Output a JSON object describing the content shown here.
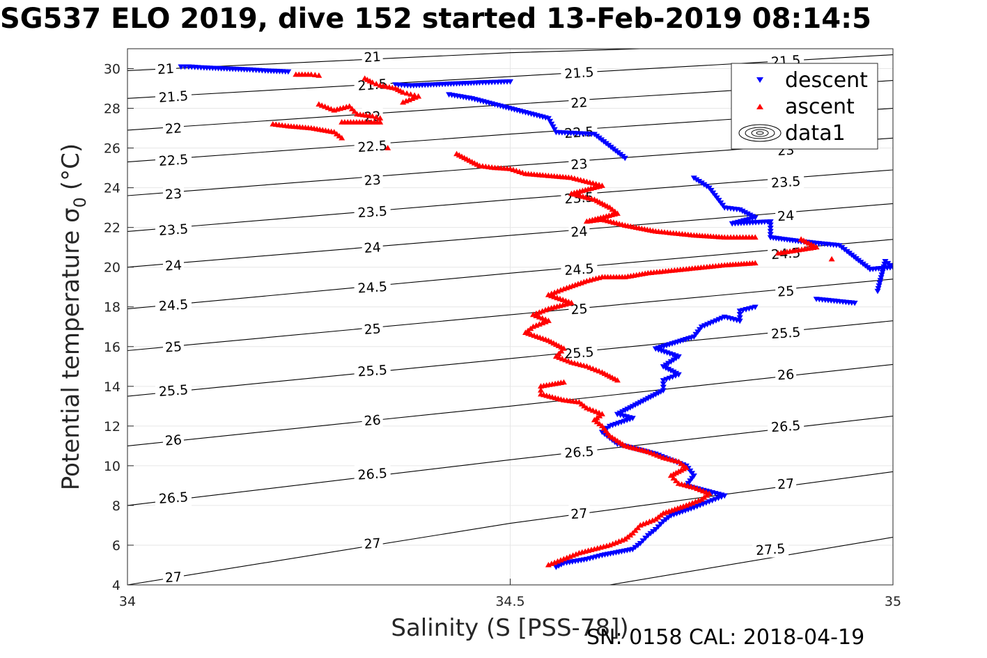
{
  "chart_data": {
    "type": "scatter",
    "title": "SG537 ELO 2019, dive 152 started 13-Feb-2019 08:14:5",
    "xlabel": "Salinity (S [PSS-78])",
    "ylabel": "Potential temperature σ",
    "ylabel_subscript": "0",
    "ylabel_unit": "(°C)",
    "xlim": [
      34,
      35
    ],
    "ylim": [
      4,
      31
    ],
    "xticks": [
      "34",
      "34.5",
      "35"
    ],
    "yticks": [
      "4",
      "6",
      "8",
      "10",
      "12",
      "14",
      "16",
      "18",
      "20",
      "22",
      "24",
      "26",
      "28",
      "30"
    ],
    "grid": true,
    "legend_position": "top-right",
    "series": [
      {
        "name": "descent",
        "marker": "triangle-down",
        "color": "#0000ff",
        "points": [
          [
            34.07,
            30.1
          ],
          [
            34.08,
            30.1
          ],
          [
            34.1,
            30.05
          ],
          [
            34.13,
            30.0
          ],
          [
            34.16,
            29.95
          ],
          [
            34.18,
            29.9
          ],
          [
            34.21,
            29.85
          ],
          [
            34.35,
            29.2
          ],
          [
            34.37,
            29.15
          ],
          [
            34.4,
            29.2
          ],
          [
            34.43,
            29.25
          ],
          [
            34.46,
            29.3
          ],
          [
            34.5,
            29.35
          ],
          [
            34.42,
            28.7
          ],
          [
            34.45,
            28.5
          ],
          [
            34.48,
            28.2
          ],
          [
            34.52,
            27.8
          ],
          [
            34.55,
            27.5
          ],
          [
            34.56,
            26.8
          ],
          [
            34.61,
            26.7
          ],
          [
            34.65,
            25.5
          ],
          [
            34.74,
            24.5
          ],
          [
            34.76,
            24.0
          ],
          [
            34.77,
            23.5
          ],
          [
            34.78,
            23.0
          ],
          [
            34.8,
            22.9
          ],
          [
            34.82,
            22.5
          ],
          [
            34.79,
            22.2
          ],
          [
            34.84,
            22.3
          ],
          [
            34.84,
            21.5
          ],
          [
            34.88,
            21.3
          ],
          [
            34.93,
            21.1
          ],
          [
            34.94,
            20.8
          ],
          [
            34.97,
            19.9
          ],
          [
            35.0,
            20.0
          ],
          [
            34.99,
            20.3
          ],
          [
            34.98,
            18.8
          ],
          [
            34.9,
            18.4
          ],
          [
            34.95,
            18.2
          ],
          [
            34.82,
            18.0
          ],
          [
            34.8,
            17.8
          ],
          [
            34.8,
            17.3
          ],
          [
            34.78,
            17.5
          ],
          [
            34.75,
            17.0
          ],
          [
            34.74,
            16.5
          ],
          [
            34.69,
            15.9
          ],
          [
            34.72,
            15.5
          ],
          [
            34.7,
            15.0
          ],
          [
            34.72,
            14.6
          ],
          [
            34.7,
            14.3
          ],
          [
            34.7,
            13.8
          ],
          [
            34.67,
            13.2
          ],
          [
            34.64,
            12.6
          ],
          [
            34.66,
            12.4
          ],
          [
            34.63,
            12.0
          ],
          [
            34.62,
            11.7
          ],
          [
            34.63,
            11.4
          ],
          [
            34.64,
            11.1
          ],
          [
            34.66,
            10.9
          ],
          [
            34.69,
            10.6
          ],
          [
            34.71,
            10.3
          ],
          [
            34.73,
            10.0
          ],
          [
            34.74,
            9.5
          ],
          [
            34.73,
            9.0
          ],
          [
            34.76,
            8.7
          ],
          [
            34.78,
            8.5
          ],
          [
            34.76,
            8.2
          ],
          [
            34.74,
            7.9
          ],
          [
            34.71,
            7.5
          ],
          [
            34.7,
            7.2
          ],
          [
            34.69,
            6.8
          ],
          [
            34.68,
            6.5
          ],
          [
            34.67,
            6.1
          ],
          [
            34.66,
            5.8
          ],
          [
            34.62,
            5.5
          ],
          [
            34.6,
            5.3
          ],
          [
            34.57,
            5.1
          ],
          [
            34.56,
            4.9
          ]
        ]
      },
      {
        "name": "ascent",
        "marker": "triangle-up",
        "color": "#ff0000",
        "points": [
          [
            34.22,
            29.7
          ],
          [
            34.24,
            29.7
          ],
          [
            34.25,
            29.65
          ],
          [
            34.31,
            29.5
          ],
          [
            34.32,
            29.3
          ],
          [
            34.33,
            29.15
          ],
          [
            34.35,
            29.0
          ],
          [
            34.36,
            28.8
          ],
          [
            34.37,
            28.7
          ],
          [
            34.38,
            28.6
          ],
          [
            34.36,
            28.3
          ],
          [
            34.25,
            28.2
          ],
          [
            34.27,
            27.9
          ],
          [
            34.29,
            28.1
          ],
          [
            34.3,
            27.7
          ],
          [
            34.32,
            27.6
          ],
          [
            34.33,
            27.5
          ],
          [
            34.33,
            27.3
          ],
          [
            34.28,
            27.3
          ],
          [
            34.19,
            27.2
          ],
          [
            34.21,
            27.1
          ],
          [
            34.24,
            27.0
          ],
          [
            34.27,
            26.8
          ],
          [
            34.28,
            26.5
          ],
          [
            34.34,
            26.0
          ],
          [
            34.43,
            25.7
          ],
          [
            34.46,
            25.1
          ],
          [
            34.48,
            25.0
          ],
          [
            34.5,
            24.95
          ],
          [
            34.52,
            24.7
          ],
          [
            34.55,
            24.6
          ],
          [
            34.58,
            24.5
          ],
          [
            34.6,
            24.3
          ],
          [
            34.62,
            24.1
          ],
          [
            34.58,
            23.7
          ],
          [
            34.61,
            23.4
          ],
          [
            34.63,
            23.0
          ],
          [
            34.64,
            22.7
          ],
          [
            34.6,
            22.3
          ],
          [
            34.62,
            22.4
          ],
          [
            34.65,
            22.1
          ],
          [
            34.69,
            21.8
          ],
          [
            34.74,
            21.6
          ],
          [
            34.78,
            21.5
          ],
          [
            34.82,
            21.5
          ],
          [
            34.88,
            21.4
          ],
          [
            34.9,
            21.0
          ],
          [
            34.85,
            20.7
          ],
          [
            34.92,
            20.4
          ],
          [
            34.82,
            20.2
          ],
          [
            34.78,
            20.1
          ],
          [
            34.73,
            19.9
          ],
          [
            34.68,
            19.7
          ],
          [
            34.65,
            19.5
          ],
          [
            34.62,
            19.5
          ],
          [
            34.6,
            19.3
          ],
          [
            34.57,
            18.9
          ],
          [
            34.55,
            18.6
          ],
          [
            34.58,
            18.2
          ],
          [
            34.55,
            17.9
          ],
          [
            34.53,
            17.6
          ],
          [
            34.55,
            17.3
          ],
          [
            34.53,
            17.0
          ],
          [
            34.52,
            16.7
          ],
          [
            34.55,
            16.3
          ],
          [
            34.57,
            15.9
          ],
          [
            34.56,
            15.5
          ],
          [
            34.58,
            15.2
          ],
          [
            34.6,
            15.0
          ],
          [
            34.62,
            14.7
          ],
          [
            34.64,
            14.3
          ],
          [
            34.57,
            14.2
          ],
          [
            34.54,
            14.0
          ],
          [
            34.54,
            13.6
          ],
          [
            34.57,
            13.3
          ],
          [
            34.59,
            13.2
          ],
          [
            34.6,
            12.9
          ],
          [
            34.62,
            12.6
          ],
          [
            34.61,
            12.3
          ],
          [
            34.62,
            12.0
          ],
          [
            34.63,
            11.5
          ],
          [
            34.65,
            11.0
          ],
          [
            34.68,
            10.7
          ],
          [
            34.7,
            10.4
          ],
          [
            34.72,
            10.2
          ],
          [
            34.73,
            9.9
          ],
          [
            34.71,
            9.5
          ],
          [
            34.72,
            9.1
          ],
          [
            34.74,
            8.9
          ],
          [
            34.76,
            8.6
          ],
          [
            34.75,
            8.3
          ],
          [
            34.73,
            8.0
          ],
          [
            34.7,
            7.6
          ],
          [
            34.69,
            7.3
          ],
          [
            34.67,
            7.0
          ],
          [
            34.66,
            6.6
          ],
          [
            34.65,
            6.3
          ],
          [
            34.63,
            6.0
          ],
          [
            34.61,
            5.8
          ],
          [
            34.59,
            5.6
          ],
          [
            34.57,
            5.3
          ],
          [
            34.55,
            5.0
          ]
        ]
      },
      {
        "name": "data1",
        "marker": "contour",
        "color": "#000000",
        "points": []
      }
    ],
    "contour_labels": [
      "21",
      "21.5",
      "22",
      "22.5",
      "23",
      "23.5",
      "24",
      "24.5",
      "25",
      "25.5",
      "26",
      "26.5",
      "27",
      "27.5"
    ],
    "isopycnals": [
      {
        "sigma": 21,
        "label": "21",
        "points": [
          [
            34.0,
            29.9
          ],
          [
            34.5,
            30.8
          ],
          [
            34.67,
            31.0
          ]
        ]
      },
      {
        "sigma": 21.5,
        "label": "21.5",
        "points": [
          [
            34.0,
            28.5
          ],
          [
            34.5,
            29.6
          ],
          [
            35.0,
            30.7
          ]
        ]
      },
      {
        "sigma": 22,
        "label": "22",
        "points": [
          [
            34.0,
            26.9
          ],
          [
            34.5,
            28.2
          ],
          [
            35.0,
            29.4
          ]
        ]
      },
      {
        "sigma": 22.5,
        "label": "22.5",
        "points": [
          [
            34.0,
            25.3
          ],
          [
            34.5,
            26.7
          ],
          [
            35.0,
            28.0
          ]
        ]
      },
      {
        "sigma": 23,
        "label": "23",
        "points": [
          [
            34.0,
            23.6
          ],
          [
            34.5,
            25.1
          ],
          [
            35.0,
            26.5
          ]
        ]
      },
      {
        "sigma": 23.5,
        "label": "23.5",
        "points": [
          [
            34.0,
            21.8
          ],
          [
            34.5,
            23.4
          ],
          [
            35.0,
            24.9
          ]
        ]
      },
      {
        "sigma": 24,
        "label": "24",
        "points": [
          [
            34.0,
            20.0
          ],
          [
            34.5,
            21.6
          ],
          [
            35.0,
            23.2
          ]
        ]
      },
      {
        "sigma": 24.5,
        "label": "24.5",
        "points": [
          [
            34.0,
            17.9
          ],
          [
            34.5,
            19.7
          ],
          [
            35.0,
            21.4
          ]
        ]
      },
      {
        "sigma": 25,
        "label": "25",
        "points": [
          [
            34.0,
            15.8
          ],
          [
            34.5,
            17.6
          ],
          [
            35.0,
            19.4
          ]
        ]
      },
      {
        "sigma": 25.5,
        "label": "25.5",
        "points": [
          [
            34.0,
            13.5
          ],
          [
            34.5,
            15.4
          ],
          [
            35.0,
            17.3
          ]
        ]
      },
      {
        "sigma": 26,
        "label": "26",
        "points": [
          [
            34.0,
            11.0
          ],
          [
            34.5,
            13.0
          ],
          [
            35.0,
            15.1
          ]
        ]
      },
      {
        "sigma": 26.5,
        "label": "26.5",
        "points": [
          [
            34.0,
            8.0
          ],
          [
            34.5,
            10.3
          ],
          [
            35.0,
            12.5
          ]
        ]
      },
      {
        "sigma": 27,
        "label": "27",
        "points": [
          [
            34.0,
            4.0
          ],
          [
            34.5,
            7.1
          ],
          [
            35.0,
            9.7
          ]
        ]
      },
      {
        "sigma": 27.5,
        "label": "27.5",
        "points": [
          [
            34.63,
            4.0
          ],
          [
            35.0,
            6.4
          ]
        ]
      }
    ],
    "contour_label_positions": [
      [
        "21",
        34.05,
        30.0
      ],
      [
        "21",
        34.32,
        30.6
      ],
      [
        "21.5",
        34.06,
        28.6
      ],
      [
        "21.5",
        34.32,
        29.2
      ],
      [
        "21.5",
        34.59,
        29.8
      ],
      [
        "21.5",
        34.86,
        30.4
      ],
      [
        "22",
        34.06,
        27.0
      ],
      [
        "22",
        34.32,
        27.6
      ],
      [
        "22",
        34.59,
        28.3
      ],
      [
        "22",
        34.86,
        28.9
      ],
      [
        "22.5",
        34.06,
        25.4
      ],
      [
        "22.5",
        34.32,
        26.1
      ],
      [
        "22.5",
        34.59,
        26.8
      ],
      [
        "22.5",
        34.86,
        27.5
      ],
      [
        "23",
        34.06,
        23.7
      ],
      [
        "23",
        34.32,
        24.4
      ],
      [
        "23",
        34.59,
        25.2
      ],
      [
        "23",
        34.86,
        25.9
      ],
      [
        "23.5",
        34.06,
        21.9
      ],
      [
        "23.5",
        34.32,
        22.8
      ],
      [
        "23.5",
        34.59,
        23.5
      ],
      [
        "23.5",
        34.86,
        24.3
      ],
      [
        "24",
        34.06,
        20.1
      ],
      [
        "24",
        34.32,
        21.0
      ],
      [
        "24",
        34.59,
        21.8
      ],
      [
        "24",
        34.86,
        22.6
      ],
      [
        "24.5",
        34.06,
        18.1
      ],
      [
        "24.5",
        34.32,
        19.0
      ],
      [
        "24.5",
        34.59,
        19.9
      ],
      [
        "24.5",
        34.86,
        20.7
      ],
      [
        "25",
        34.06,
        16.0
      ],
      [
        "25",
        34.32,
        16.9
      ],
      [
        "25",
        34.59,
        17.9
      ],
      [
        "25",
        34.86,
        18.8
      ],
      [
        "25.5",
        34.06,
        13.8
      ],
      [
        "25.5",
        34.32,
        14.8
      ],
      [
        "25.5",
        34.59,
        15.7
      ],
      [
        "25.5",
        34.86,
        16.7
      ],
      [
        "26",
        34.06,
        11.3
      ],
      [
        "26",
        34.32,
        12.3
      ],
      [
        "26",
        34.86,
        14.6
      ],
      [
        "26.5",
        34.06,
        8.4
      ],
      [
        "26.5",
        34.32,
        9.6
      ],
      [
        "26.5",
        34.59,
        10.7
      ],
      [
        "26.5",
        34.86,
        12.0
      ],
      [
        "27",
        34.06,
        4.4
      ],
      [
        "27",
        34.32,
        6.1
      ],
      [
        "27",
        34.59,
        7.6
      ],
      [
        "27",
        34.86,
        9.1
      ],
      [
        "27.5",
        34.84,
        5.8
      ]
    ],
    "footer": "SN: 0158  CAL: 2018-04-19"
  }
}
